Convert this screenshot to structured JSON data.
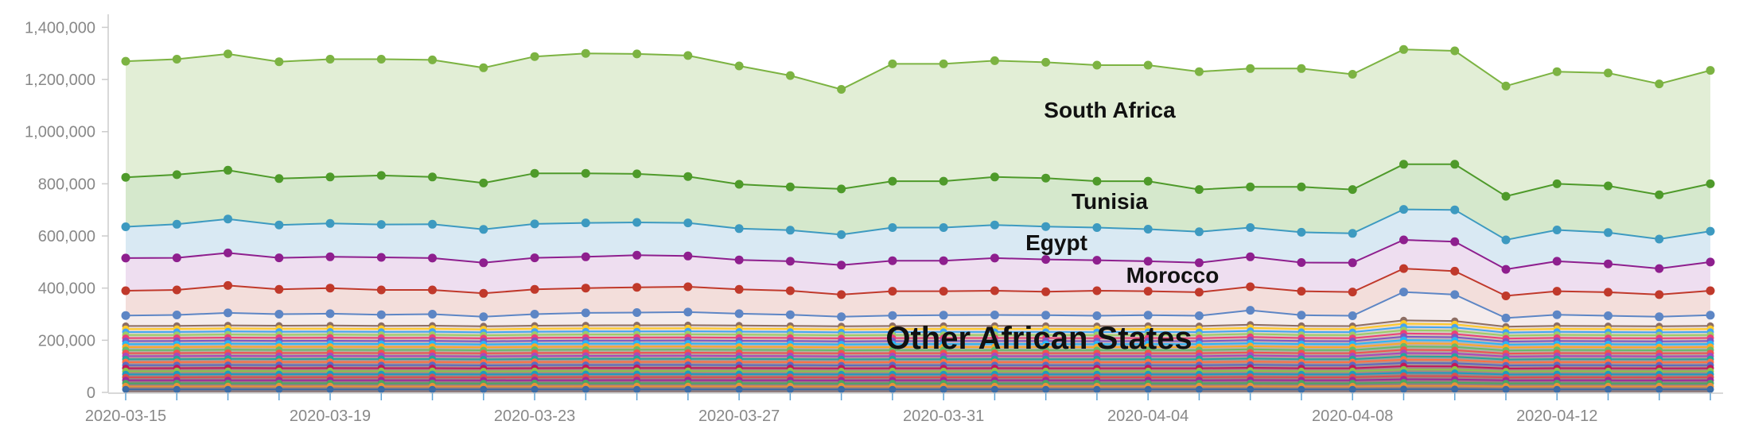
{
  "chart_data": {
    "type": "area",
    "stacked": true,
    "x": [
      "2020-03-15",
      "2020-03-16",
      "2020-03-17",
      "2020-03-18",
      "2020-03-19",
      "2020-03-20",
      "2020-03-21",
      "2020-03-22",
      "2020-03-23",
      "2020-03-24",
      "2020-03-25",
      "2020-03-26",
      "2020-03-27",
      "2020-03-28",
      "2020-03-29",
      "2020-03-30",
      "2020-03-31",
      "2020-04-01",
      "2020-04-02",
      "2020-04-03",
      "2020-04-04",
      "2020-04-05",
      "2020-04-06",
      "2020-04-07",
      "2020-04-08",
      "2020-04-09",
      "2020-04-10",
      "2020-04-11",
      "2020-04-12",
      "2020-04-13",
      "2020-04-14",
      "2020-04-15"
    ],
    "x_tick_labels": [
      "2020-03-15",
      "2020-03-19",
      "2020-03-23",
      "2020-03-27",
      "2020-03-31",
      "2020-04-04",
      "2020-04-08",
      "2020-04-12"
    ],
    "y_tick_labels": [
      "0",
      "200,000",
      "400,000",
      "600,000",
      "800,000",
      "1,000,000",
      "1,200,000",
      "1,400,000"
    ],
    "ylim": [
      0,
      1450000
    ],
    "grid": false,
    "legend": "none",
    "area_labels": [
      "South Africa",
      "Tunisia",
      "Egypt",
      "Morocco",
      "Other African States"
    ],
    "thin_series_colors": [
      "#3b6ba5",
      "#e8913a",
      "#4aa564",
      "#9c2a9c",
      "#d94f4f",
      "#1f9bbf",
      "#8bc34a",
      "#c2185b",
      "#5c6bc0",
      "#ff7043",
      "#26a69a",
      "#ab47bc",
      "#ef5350",
      "#66bb6a",
      "#ffa726",
      "#29b6f6",
      "#7e57c2",
      "#ec407a",
      "#9ccc65",
      "#42a5f5",
      "#ffca28",
      "#8d6e63"
    ],
    "series": [
      {
        "color": "#5d86c5",
        "values": [
          295000,
          297000,
          305000,
          300000,
          302000,
          298000,
          300000,
          290000,
          300000,
          305000,
          306000,
          308000,
          302000,
          298000,
          290000,
          295000,
          296000,
          297000,
          296000,
          294000,
          296000,
          294000,
          315000,
          296000,
          294000,
          385000,
          375000,
          285000,
          298000,
          294000,
          290000,
          296000
        ]
      },
      {
        "color": "#c0392b",
        "values": [
          390000,
          393000,
          410000,
          395000,
          400000,
          393000,
          393000,
          380000,
          395000,
          400000,
          403000,
          405000,
          395000,
          390000,
          375000,
          388000,
          388000,
          390000,
          386000,
          390000,
          388000,
          384000,
          405000,
          388000,
          385000,
          475000,
          465000,
          370000,
          388000,
          384000,
          375000,
          390000
        ]
      },
      {
        "color": "#8e1f8e",
        "values": [
          515000,
          516000,
          535000,
          516000,
          520000,
          518000,
          515000,
          497000,
          516000,
          520000,
          526000,
          523000,
          508000,
          503000,
          488000,
          505000,
          505000,
          515000,
          510000,
          507000,
          503000,
          497000,
          520000,
          498000,
          497000,
          585000,
          578000,
          472000,
          503000,
          493000,
          475000,
          500000
        ]
      },
      {
        "color": "#3d9ac0",
        "values": [
          635000,
          645000,
          665000,
          642000,
          648000,
          644000,
          645000,
          625000,
          646000,
          650000,
          652000,
          650000,
          628000,
          622000,
          605000,
          632000,
          632000,
          642000,
          636000,
          632000,
          626000,
          616000,
          632000,
          614000,
          610000,
          702000,
          700000,
          585000,
          623000,
          613000,
          588000,
          618000
        ]
      },
      {
        "color": "#4e9a2a",
        "values": [
          825000,
          835000,
          852000,
          820000,
          826000,
          832000,
          826000,
          803000,
          840000,
          840000,
          838000,
          828000,
          798000,
          788000,
          780000,
          810000,
          810000,
          826000,
          822000,
          810000,
          810000,
          778000,
          788000,
          788000,
          778000,
          875000,
          875000,
          752000,
          800000,
          792000,
          758000,
          800000
        ]
      },
      {
        "color": "#7cb342",
        "values": [
          1270000,
          1278000,
          1298000,
          1268000,
          1278000,
          1278000,
          1275000,
          1245000,
          1288000,
          1300000,
          1298000,
          1292000,
          1252000,
          1215000,
          1162000,
          1260000,
          1260000,
          1272000,
          1266000,
          1255000,
          1255000,
          1230000,
          1242000,
          1242000,
          1220000,
          1315000,
          1310000,
          1175000,
          1230000,
          1225000,
          1183000,
          1235000
        ]
      }
    ]
  }
}
